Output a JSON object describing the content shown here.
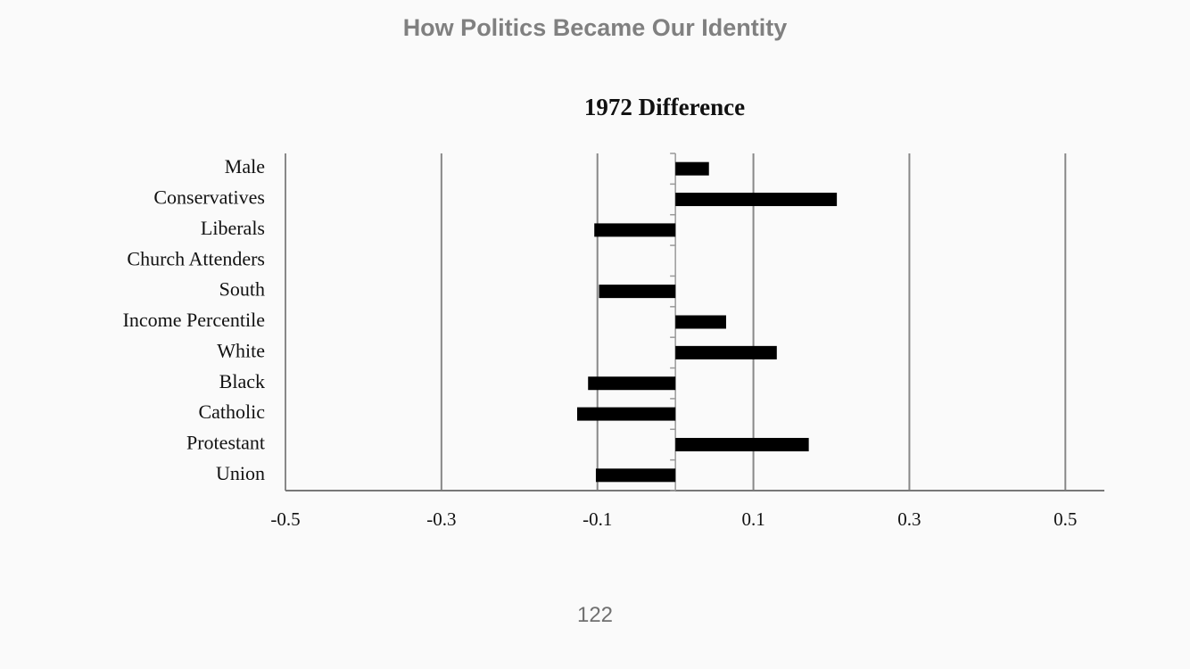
{
  "header": {
    "title": "How Politics Became Our Identity"
  },
  "chart_data": {
    "type": "bar",
    "orientation": "horizontal",
    "title": "1972 Difference",
    "categories": [
      "Male",
      "Conservatives",
      "Liberals",
      "Church Attenders",
      "South",
      "Income Percentile",
      "White",
      "Black",
      "Catholic",
      "Protestant",
      "Union"
    ],
    "values": [
      0.043,
      0.207,
      -0.104,
      0,
      -0.098,
      0.065,
      0.13,
      -0.112,
      -0.126,
      0.171,
      -0.102
    ],
    "color": "#000000",
    "xlim": [
      -0.5,
      0.55
    ],
    "xticks": [
      -0.5,
      -0.3,
      -0.1,
      0.1,
      0.3,
      0.5
    ],
    "grid": true
  },
  "footer": {
    "page_number": "122"
  }
}
